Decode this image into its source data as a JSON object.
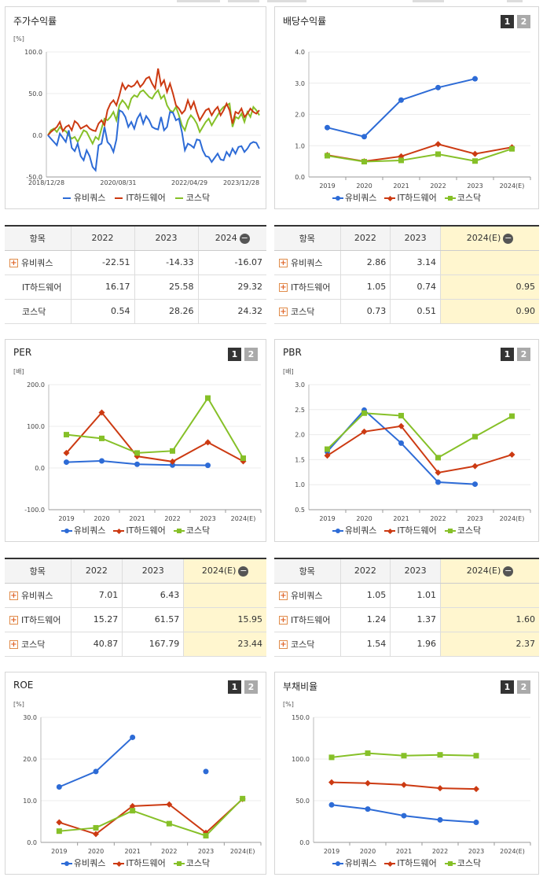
{
  "colors": {
    "ubiquoss": "#2d6bd6",
    "ithw": "#cc3a12",
    "kosdaq": "#86c028",
    "highlight": "#fff6cf"
  },
  "legend_labels": [
    "유비쿼스",
    "IT하드웨어",
    "코스닥"
  ],
  "tab_buttons": [
    "1",
    "2"
  ],
  "table_header": {
    "item": "항목"
  },
  "icons": {
    "expand": "plus-box-icon",
    "collapse": "minus-circle-icon"
  },
  "panels": {
    "stock_return": {
      "title": "주가수익률"
    },
    "dividend_yield": {
      "title": "배당수익률"
    },
    "per": {
      "title": "PER"
    },
    "pbr": {
      "title": "PBR"
    },
    "roe": {
      "title": "ROE"
    },
    "debt_ratio": {
      "title": "부채비율"
    }
  },
  "chart_data": [
    {
      "id": "stock_return",
      "type": "line",
      "unit": "[%]",
      "ylim": [
        -50,
        100
      ],
      "yticks": [
        "100.0",
        "50.0",
        "0.0",
        "-50.0"
      ],
      "x_ticks": [
        "2018/12/28",
        "2020/08/31",
        "2022/04/29",
        "2023/12/28"
      ],
      "series": [
        {
          "name": "유비쿼스",
          "values": [
            0,
            -4,
            -8,
            -12,
            2,
            -3,
            -8,
            6,
            -15,
            -19,
            -10,
            -25,
            -30,
            -18,
            -25,
            -38,
            -42,
            -12,
            -10,
            10,
            -8,
            -12,
            -20,
            -5,
            30,
            28,
            22,
            10,
            16,
            8,
            20,
            26,
            14,
            23,
            18,
            10,
            8,
            7,
            22,
            6,
            10,
            28,
            27,
            18,
            20,
            4,
            -18,
            -10,
            -12,
            -15,
            -5,
            -6,
            -18,
            -25,
            -26,
            -32,
            -27,
            -22,
            -29,
            -30,
            -20,
            -25,
            -16,
            -22,
            -14,
            -13,
            -20,
            -16,
            -10,
            -8,
            -9,
            -16
          ]
        },
        {
          "name": "IT하드웨어",
          "values": [
            0,
            4,
            7,
            10,
            16,
            5,
            10,
            12,
            6,
            17,
            14,
            8,
            10,
            12,
            8,
            6,
            5,
            14,
            18,
            12,
            30,
            38,
            42,
            36,
            48,
            62,
            55,
            60,
            58,
            60,
            65,
            58,
            62,
            68,
            70,
            62,
            56,
            80,
            60,
            66,
            52,
            62,
            50,
            36,
            32,
            26,
            30,
            42,
            32,
            40,
            28,
            18,
            24,
            30,
            32,
            24,
            30,
            34,
            24,
            30,
            38,
            30,
            14,
            28,
            26,
            32,
            22,
            26,
            32,
            28,
            26,
            30
          ]
        },
        {
          "name": "코스닥",
          "values": [
            0,
            6,
            8,
            4,
            10,
            6,
            5,
            0,
            -4,
            -2,
            -8,
            -1,
            6,
            4,
            -3,
            -10,
            -2,
            -5,
            8,
            20,
            18,
            22,
            28,
            18,
            36,
            42,
            38,
            32,
            44,
            48,
            46,
            52,
            54,
            50,
            46,
            44,
            50,
            54,
            44,
            48,
            36,
            30,
            28,
            34,
            24,
            12,
            6,
            18,
            24,
            20,
            14,
            4,
            10,
            16,
            20,
            12,
            18,
            24,
            30,
            34,
            36,
            38,
            10,
            22,
            20,
            26,
            16,
            28,
            22,
            34,
            30,
            24
          ]
        }
      ]
    },
    {
      "id": "dividend_yield",
      "type": "line",
      "unit": "",
      "ylim": [
        0,
        4
      ],
      "yticks": [
        "4.0",
        "3.0",
        "2.0",
        "1.0",
        "0.0"
      ],
      "categories": [
        "2019",
        "2020",
        "2021",
        "2022",
        "2023",
        "2024(E)"
      ],
      "series": [
        {
          "name": "유비쿼스",
          "values": [
            1.58,
            1.29,
            2.46,
            2.86,
            3.14,
            null
          ]
        },
        {
          "name": "IT하드웨어",
          "values": [
            0.7,
            0.5,
            0.66,
            1.05,
            0.74,
            0.95
          ]
        },
        {
          "name": "코스닥",
          "values": [
            0.68,
            0.49,
            0.53,
            0.73,
            0.51,
            0.9
          ]
        }
      ]
    },
    {
      "id": "per",
      "type": "line",
      "unit": "[배]",
      "ylim": [
        -100,
        200
      ],
      "yticks": [
        "200.0",
        "100.0",
        "0.0",
        "-100.0"
      ],
      "categories": [
        "2019",
        "2020",
        "2021",
        "2022",
        "2023",
        "2024(E)"
      ],
      "series": [
        {
          "name": "유비쿼스",
          "values": [
            14,
            17,
            9,
            7.01,
            6.43,
            null
          ]
        },
        {
          "name": "IT하드웨어",
          "values": [
            36,
            133,
            28,
            15.27,
            61.57,
            15.95
          ]
        },
        {
          "name": "코스닥",
          "values": [
            80,
            71,
            36,
            40.87,
            167.79,
            23.44
          ]
        }
      ]
    },
    {
      "id": "pbr",
      "type": "line",
      "unit": "[배]",
      "ylim": [
        0.5,
        3.0
      ],
      "yticks": [
        "3.0",
        "2.5",
        "2.0",
        "1.5",
        "1.0",
        "0.5"
      ],
      "categories": [
        "2019",
        "2020",
        "2021",
        "2022",
        "2023",
        "2024(E)"
      ],
      "series": [
        {
          "name": "유비쿼스",
          "values": [
            1.66,
            2.49,
            1.83,
            1.05,
            1.01,
            null
          ]
        },
        {
          "name": "IT하드웨어",
          "values": [
            1.58,
            2.06,
            2.17,
            1.24,
            1.37,
            1.6
          ]
        },
        {
          "name": "코스닥",
          "values": [
            1.71,
            2.43,
            2.38,
            1.54,
            1.96,
            2.37
          ]
        }
      ]
    },
    {
      "id": "roe",
      "type": "line",
      "unit": "[%]",
      "ylim": [
        0,
        30
      ],
      "yticks": [
        "30.0",
        "20.0",
        "10.0",
        "0.0"
      ],
      "categories": [
        "2019",
        "2020",
        "2021",
        "2022",
        "2023",
        "2024(E)"
      ],
      "series": [
        {
          "name": "유비쿼스",
          "values": [
            13.3,
            17.0,
            25.2,
            null,
            17.0,
            null
          ]
        },
        {
          "name": "IT하드웨어",
          "values": [
            4.8,
            2.0,
            8.7,
            9.1,
            2.3,
            10.4
          ]
        },
        {
          "name": "코스닥",
          "values": [
            2.7,
            3.5,
            7.6,
            4.5,
            1.6,
            10.5
          ]
        }
      ]
    },
    {
      "id": "debt_ratio",
      "type": "line",
      "unit": "[%]",
      "ylim": [
        0,
        150
      ],
      "yticks": [
        "150.0",
        "100.0",
        "50.0",
        "0.0"
      ],
      "categories": [
        "2019",
        "2020",
        "2021",
        "2022",
        "2023",
        "2024(E)"
      ],
      "series": [
        {
          "name": "유비쿼스",
          "values": [
            45,
            40,
            32,
            27,
            24,
            null
          ]
        },
        {
          "name": "IT하드웨어",
          "values": [
            72,
            71,
            69,
            65,
            64,
            null
          ]
        },
        {
          "name": "코스닥",
          "values": [
            102,
            107,
            104,
            105,
            104,
            null
          ]
        }
      ]
    }
  ],
  "tables": {
    "stock_return": {
      "columns": [
        "2022",
        "2023",
        "2024"
      ],
      "rows": [
        {
          "name": "유비쿼스",
          "expandable": true,
          "values": [
            "-22.51",
            "-14.33",
            "-16.07"
          ]
        },
        {
          "name": "IT하드웨어",
          "expandable": false,
          "values": [
            "16.17",
            "25.58",
            "29.32"
          ]
        },
        {
          "name": "코스닥",
          "expandable": false,
          "values": [
            "0.54",
            "28.26",
            "24.32"
          ]
        }
      ]
    },
    "dividend_yield": {
      "columns": [
        "2022",
        "2023",
        "2024(E)"
      ],
      "rows": [
        {
          "name": "유비쿼스",
          "expandable": true,
          "values": [
            "2.86",
            "3.14",
            ""
          ]
        },
        {
          "name": "IT하드웨어",
          "expandable": true,
          "values": [
            "1.05",
            "0.74",
            "0.95"
          ]
        },
        {
          "name": "코스닥",
          "expandable": true,
          "values": [
            "0.73",
            "0.51",
            "0.90"
          ]
        }
      ]
    },
    "per": {
      "columns": [
        "2022",
        "2023",
        "2024(E)"
      ],
      "rows": [
        {
          "name": "유비쿼스",
          "expandable": true,
          "values": [
            "7.01",
            "6.43",
            ""
          ]
        },
        {
          "name": "IT하드웨어",
          "expandable": true,
          "values": [
            "15.27",
            "61.57",
            "15.95"
          ]
        },
        {
          "name": "코스닥",
          "expandable": true,
          "values": [
            "40.87",
            "167.79",
            "23.44"
          ]
        }
      ]
    },
    "pbr": {
      "columns": [
        "2022",
        "2023",
        "2024(E)"
      ],
      "rows": [
        {
          "name": "유비쿼스",
          "expandable": true,
          "values": [
            "1.05",
            "1.01",
            ""
          ]
        },
        {
          "name": "IT하드웨어",
          "expandable": true,
          "values": [
            "1.24",
            "1.37",
            "1.60"
          ]
        },
        {
          "name": "코스닥",
          "expandable": true,
          "values": [
            "1.54",
            "1.96",
            "2.37"
          ]
        }
      ]
    }
  }
}
